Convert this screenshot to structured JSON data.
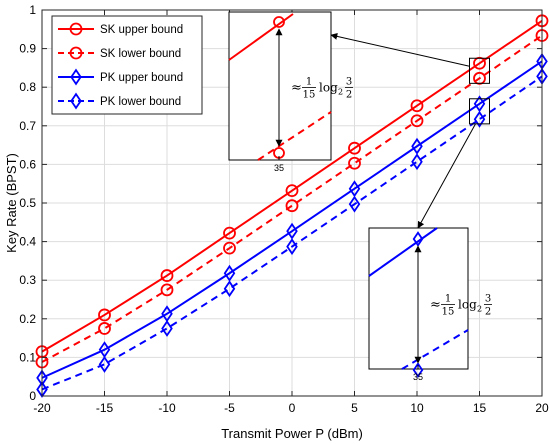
{
  "chart_data": {
    "type": "line",
    "xlabel": "Transmit Power P (dBm)",
    "ylabel": "Key Rate (BPST)",
    "xlim": [
      -20,
      20
    ],
    "ylim": [
      0,
      1
    ],
    "xticks": [
      "-20",
      "-15",
      "-10",
      "-5",
      "0",
      "5",
      "10",
      "15",
      "20"
    ],
    "yticks": [
      "0",
      "0.1",
      "0.2",
      "0.3",
      "0.4",
      "0.5",
      "0.6",
      "0.7",
      "0.8",
      "0.9",
      "1"
    ],
    "grid": true,
    "legend_position": "top-left",
    "x": [
      -20,
      -15,
      -10,
      -5,
      0,
      5,
      10,
      15,
      20
    ],
    "series": [
      {
        "name": "SK upper bound",
        "color": "#ff0000",
        "dash": "solid",
        "marker": "circle",
        "values": [
          0.115,
          0.21,
          0.312,
          0.422,
          0.532,
          0.642,
          0.752,
          0.862,
          0.972
        ]
      },
      {
        "name": "SK lower bound",
        "color": "#ff0000",
        "dash": "dashed",
        "marker": "circle",
        "values": [
          0.088,
          0.175,
          0.275,
          0.383,
          0.493,
          0.603,
          0.713,
          0.823,
          0.934
        ]
      },
      {
        "name": "PK upper bound",
        "color": "#0000ff",
        "dash": "solid",
        "marker": "diamond",
        "values": [
          0.047,
          0.12,
          0.213,
          0.318,
          0.427,
          0.537,
          0.647,
          0.757,
          0.867
        ]
      },
      {
        "name": "PK lower bound",
        "color": "#0000ff",
        "dash": "dashed",
        "marker": "diamond",
        "values": [
          0.017,
          0.082,
          0.175,
          0.278,
          0.387,
          0.497,
          0.607,
          0.717,
          0.828
        ]
      }
    ],
    "insets": [
      {
        "series_color": "#ff0000",
        "tick_label": "35",
        "annotation": "≈ (1/15) log₂ (3/2)"
      },
      {
        "series_color": "#0000ff",
        "tick_label": "35",
        "annotation": "≈ (1/15) log₂ (3/2)"
      }
    ]
  }
}
